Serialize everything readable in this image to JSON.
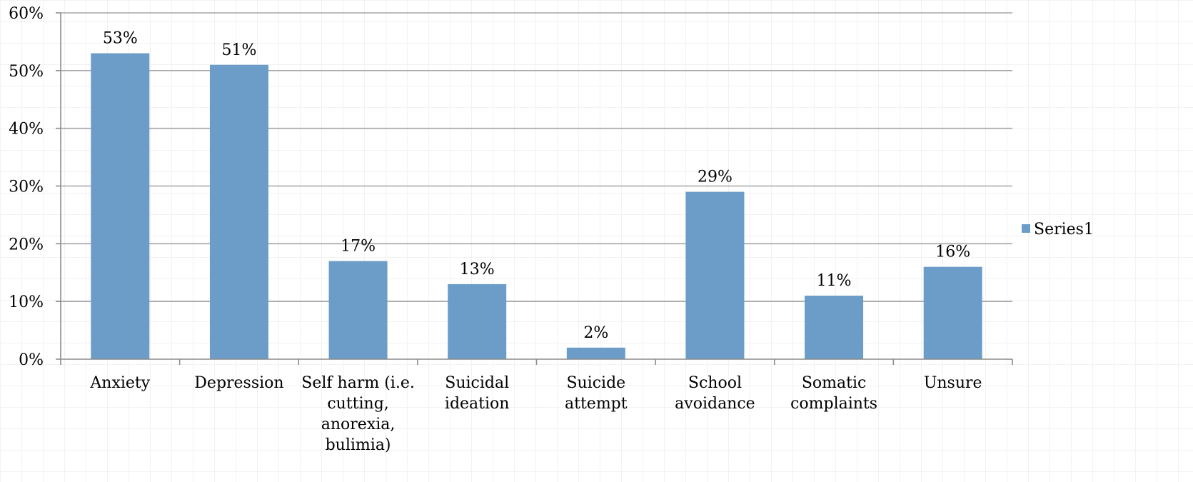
{
  "chart_data": {
    "type": "bar",
    "categories": [
      [
        "Anxiety"
      ],
      [
        "Depression"
      ],
      [
        "Self harm (i.e.",
        "cutting,",
        "anorexia,",
        "bulimia)"
      ],
      [
        "Suicidal",
        "ideation"
      ],
      [
        "Suicide",
        "attempt"
      ],
      [
        "School",
        "avoidance"
      ],
      [
        "Somatic",
        "complaints"
      ],
      [
        "Unsure"
      ]
    ],
    "series": [
      {
        "name": "Series1",
        "values": [
          53,
          51,
          17,
          13,
          2,
          29,
          11,
          16
        ],
        "labels": [
          "53%",
          "51%",
          "17%",
          "13%",
          "2%",
          "29%",
          "11%",
          "16%"
        ]
      }
    ],
    "ylim": [
      0,
      60
    ],
    "yticks": [
      0,
      10,
      20,
      30,
      40,
      50,
      60
    ],
    "ytick_labels": [
      "0%",
      "10%",
      "20%",
      "30%",
      "40%",
      "50%",
      "60%"
    ],
    "grid": true,
    "legend_position": "right",
    "colors": {
      "bar": "#6b9dc8",
      "gridline": "#a6a6a6",
      "axis": "#8c8c8c"
    }
  }
}
